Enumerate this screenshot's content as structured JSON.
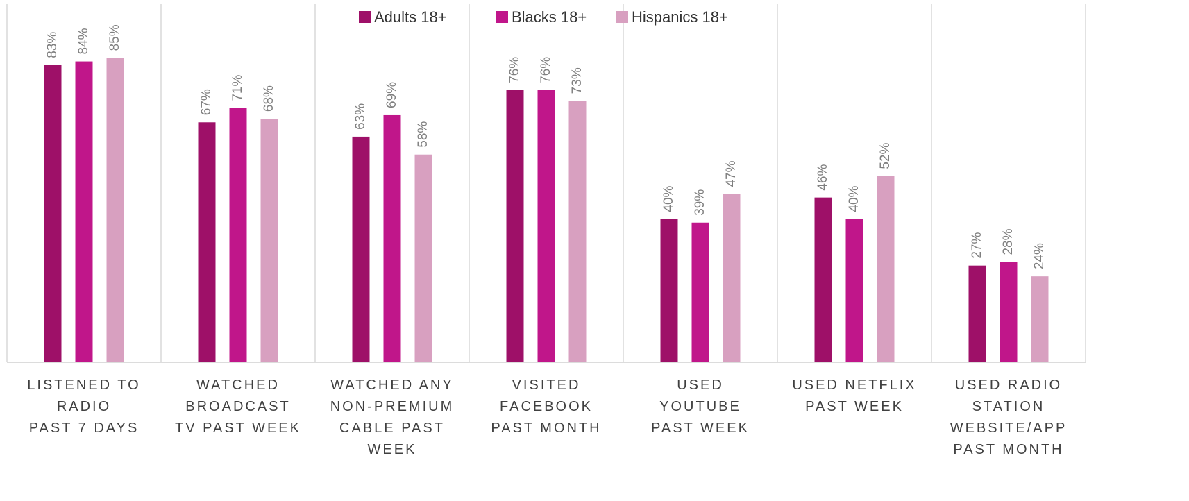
{
  "chart_data": {
    "type": "bar",
    "categories": [
      "LISTENED TO\nRADIO\nPAST 7 DAYS",
      "WATCHED\nBROADCAST\nTV PAST WEEK",
      "WATCHED ANY\nNON-PREMIUM\nCABLE PAST\nWEEK",
      "VISITED\nFACEBOOK\nPAST MONTH",
      "USED\nYOUTUBE\nPAST WEEK",
      "USED NETFLIX\nPAST WEEK",
      "USED RADIO\nSTATION\nWEBSITE/APP\nPAST MONTH"
    ],
    "series": [
      {
        "name": "Adults 18+",
        "color": "#9e1068",
        "values": [
          83,
          67,
          63,
          76,
          40,
          46,
          27
        ],
        "value_labels": [
          "83%",
          "67%",
          "63%",
          "76%",
          "40%",
          "46%",
          "27%"
        ]
      },
      {
        "name": "Blacks 18+",
        "color": "#c0168a",
        "values": [
          84,
          71,
          69,
          76,
          39,
          40,
          28
        ],
        "value_labels": [
          "84%",
          "71%",
          "69%",
          "76%",
          "39%",
          "40%",
          "28%"
        ]
      },
      {
        "name": "Hispanics 18+",
        "color": "#d8a0c0",
        "values": [
          85,
          68,
          58,
          73,
          47,
          52,
          24
        ],
        "value_labels": [
          "85%",
          "68%",
          "58%",
          "73%",
          "47%",
          "52%",
          "24%"
        ]
      }
    ],
    "legend": "top",
    "grid": false
  }
}
